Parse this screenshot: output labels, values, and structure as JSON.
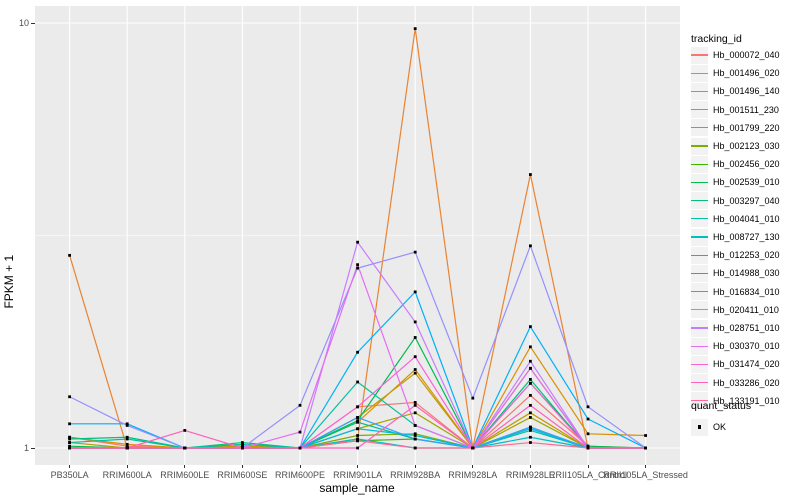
{
  "colors": {
    "panel_bg": "#EBEBEB",
    "grid": "#FFFFFF",
    "legend_key_bg": "#F2F2F2",
    "tick_text": "#4D4D4D",
    "point": "#000000"
  },
  "legend": {
    "tracking_title": "tracking_id",
    "quant_title": "quant_status",
    "quant_items": [
      {
        "label": "OK"
      }
    ]
  },
  "chart_data": {
    "type": "line",
    "title": "",
    "xlabel": "sample_name",
    "ylabel": "FPKM + 1",
    "y_scale": "log10",
    "y_ticks": [
      "1",
      "10"
    ],
    "ylim": [
      0.91,
      10.9
    ],
    "grid": true,
    "legend_position": "right",
    "point_shape": "filled-square",
    "x_categories": [
      "PB350LA",
      "RRIM600LA",
      "RRIM600LE",
      "RRIM600SE",
      "RRIM600PE",
      "RRIM901LA",
      "RRIM928BA",
      "RRIM928LA",
      "RRIM928LE",
      "RRII105LA_Control",
      "RRII105LA_Stressed"
    ],
    "series": [
      {
        "name": "Hb_000072_040",
        "color": "#F8766D",
        "values": [
          1.06,
          1.01,
          1.0,
          1.01,
          1.0,
          1.25,
          1.28,
          1.0,
          1.33,
          1.01,
          1.0
        ]
      },
      {
        "name": "Hb_001496_020",
        "color": "#EA8331",
        "values": [
          2.84,
          1.0,
          1.0,
          1.0,
          1.0,
          1.05,
          9.7,
          1.0,
          4.4,
          1.0,
          1.0
        ]
      },
      {
        "name": "Hb_001496_140",
        "color": "#D89000",
        "values": [
          1.06,
          1.02,
          1.0,
          1.02,
          1.0,
          1.15,
          1.53,
          1.0,
          1.73,
          1.08,
          1.07
        ]
      },
      {
        "name": "Hb_001511_230",
        "color": "#C09B00",
        "values": [
          1.03,
          1.0,
          1.0,
          1.01,
          1.0,
          1.18,
          1.5,
          1.0,
          1.21,
          1.0,
          1.0
        ]
      },
      {
        "name": "Hb_001799_220",
        "color": "#A3A500",
        "values": [
          1.0,
          1.0,
          1.0,
          1.0,
          1.0,
          1.11,
          1.21,
          1.0,
          1.18,
          1.0,
          1.0
        ]
      },
      {
        "name": "Hb_002123_030",
        "color": "#7CAE00",
        "values": [
          1.0,
          1.0,
          1.0,
          1.0,
          1.0,
          1.07,
          1.08,
          1.0,
          1.54,
          1.0,
          1.0
        ]
      },
      {
        "name": "Hb_002456_020",
        "color": "#39B600",
        "values": [
          1.0,
          1.0,
          1.0,
          1.0,
          1.0,
          1.04,
          1.05,
          1.0,
          1.12,
          1.0,
          1.0
        ]
      },
      {
        "name": "Hb_002539_010",
        "color": "#00BB4E",
        "values": [
          1.01,
          1.0,
          1.0,
          1.0,
          1.0,
          1.16,
          1.82,
          1.0,
          1.42,
          1.01,
          1.0
        ]
      },
      {
        "name": "Hb_003297_040",
        "color": "#00BF7D",
        "values": [
          1.05,
          1.06,
          1.0,
          1.03,
          1.0,
          1.15,
          1.05,
          1.0,
          1.45,
          1.0,
          1.0
        ]
      },
      {
        "name": "Hb_004041_010",
        "color": "#00C1A3",
        "values": [
          1.03,
          1.05,
          1.0,
          1.02,
          1.0,
          1.43,
          1.13,
          1.0,
          1.1,
          1.0,
          1.0
        ]
      },
      {
        "name": "Hb_008727_130",
        "color": "#00BFC4",
        "values": [
          1.0,
          1.0,
          1.0,
          1.0,
          1.0,
          1.05,
          1.0,
          1.0,
          1.06,
          1.0,
          1.0
        ]
      },
      {
        "name": "Hb_012253_020",
        "color": "#00BAE0",
        "values": [
          1.0,
          1.0,
          1.0,
          1.0,
          1.0,
          1.11,
          1.07,
          1.0,
          1.11,
          1.0,
          1.0
        ]
      },
      {
        "name": "Hb_014988_030",
        "color": "#00B0F6",
        "values": [
          1.14,
          1.14,
          1.0,
          1.0,
          1.0,
          1.68,
          2.33,
          1.0,
          1.93,
          1.17,
          1.0
        ]
      },
      {
        "name": "Hb_016834_010",
        "color": "#35A2FF",
        "values": [
          1.0,
          1.0,
          1.0,
          1.0,
          1.0,
          1.18,
          1.05,
          1.0,
          1.12,
          1.0,
          1.0
        ]
      },
      {
        "name": "Hb_020411_010",
        "color": "#9590FF",
        "values": [
          1.32,
          1.13,
          1.0,
          1.0,
          1.26,
          2.65,
          2.89,
          1.31,
          2.99,
          1.25,
          1.0
        ]
      },
      {
        "name": "Hb_028751_010",
        "color": "#C77CFF",
        "values": [
          1.0,
          1.0,
          1.0,
          1.0,
          1.0,
          3.05,
          1.98,
          1.0,
          1.6,
          1.0,
          1.0
        ]
      },
      {
        "name": "Hb_030370_010",
        "color": "#E76BF3",
        "values": [
          1.0,
          1.0,
          1.0,
          1.0,
          1.09,
          2.7,
          1.13,
          1.0,
          1.54,
          1.0,
          1.0
        ]
      },
      {
        "name": "Hb_031474_020",
        "color": "#FA62DB",
        "values": [
          1.0,
          1.0,
          1.0,
          1.0,
          1.0,
          1.25,
          1.64,
          1.0,
          1.42,
          1.0,
          1.0
        ]
      },
      {
        "name": "Hb_033286_020",
        "color": "#FF62BC",
        "values": [
          1.0,
          1.0,
          1.1,
          1.0,
          1.0,
          1.0,
          1.26,
          1.0,
          1.26,
          1.0,
          1.0
        ]
      },
      {
        "name": "Hb_133191_010",
        "color": "#FF6A98",
        "values": [
          1.0,
          1.0,
          1.0,
          1.0,
          1.0,
          1.04,
          1.0,
          1.0,
          1.03,
          1.0,
          1.0
        ]
      }
    ]
  }
}
